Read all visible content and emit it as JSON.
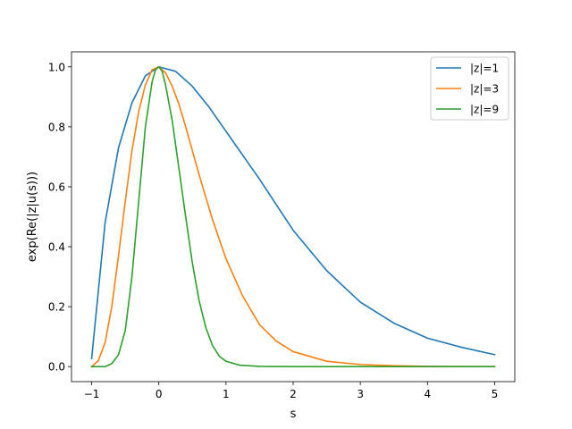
{
  "chart_data": {
    "type": "line",
    "title": "",
    "xlabel": "s",
    "ylabel": "exp(Re(|z|u(s)))",
    "xlim": [
      -1.3,
      5.3
    ],
    "ylim": [
      -0.05,
      1.05
    ],
    "xticks": [
      -1,
      0,
      1,
      2,
      3,
      4,
      5
    ],
    "xtick_labels": [
      "−1",
      "0",
      "1",
      "2",
      "3",
      "4",
      "5"
    ],
    "yticks": [
      0.0,
      0.2,
      0.4,
      0.6,
      0.8,
      1.0
    ],
    "ytick_labels": [
      "0.0",
      "0.2",
      "0.4",
      "0.6",
      "0.8",
      "1.0"
    ],
    "grid": false,
    "legend_position": "top-right",
    "series": [
      {
        "name": "|z|=1",
        "color": "#1f77b4",
        "x": [
          -1,
          -0.8,
          -0.6,
          -0.4,
          -0.2,
          0,
          0.25,
          0.5,
          0.75,
          1,
          1.5,
          2,
          2.5,
          3,
          3.5,
          4,
          4.5,
          5
        ],
        "y": [
          0.027,
          0.48,
          0.73,
          0.88,
          0.97,
          1.0,
          0.985,
          0.935,
          0.865,
          0.785,
          0.625,
          0.455,
          0.32,
          0.215,
          0.145,
          0.095,
          0.065,
          0.04
        ]
      },
      {
        "name": "|z|=3",
        "color": "#ff7f0e",
        "x": [
          -1,
          -0.9,
          -0.8,
          -0.7,
          -0.6,
          -0.5,
          -0.4,
          -0.3,
          -0.2,
          -0.1,
          0,
          0.1,
          0.2,
          0.3,
          0.4,
          0.5,
          0.6,
          0.8,
          1,
          1.25,
          1.5,
          1.75,
          2,
          2.5,
          3,
          3.5,
          4,
          5
        ],
        "y": [
          0.0,
          0.02,
          0.08,
          0.2,
          0.37,
          0.55,
          0.72,
          0.85,
          0.94,
          0.99,
          1.0,
          0.98,
          0.935,
          0.875,
          0.8,
          0.72,
          0.64,
          0.49,
          0.36,
          0.235,
          0.14,
          0.085,
          0.05,
          0.018,
          0.007,
          0.003,
          0.001,
          0.0
        ]
      },
      {
        "name": "|z|=9",
        "color": "#2ca02c",
        "x": [
          -1,
          -0.8,
          -0.7,
          -0.6,
          -0.5,
          -0.4,
          -0.3,
          -0.2,
          -0.1,
          -0.05,
          0,
          0.05,
          0.1,
          0.2,
          0.3,
          0.4,
          0.5,
          0.6,
          0.7,
          0.8,
          0.9,
          1.0,
          1.2,
          1.5,
          2,
          3,
          5
        ],
        "y": [
          0.0,
          0.0,
          0.01,
          0.04,
          0.12,
          0.3,
          0.55,
          0.8,
          0.95,
          0.99,
          1.0,
          0.985,
          0.94,
          0.82,
          0.66,
          0.5,
          0.345,
          0.22,
          0.13,
          0.07,
          0.035,
          0.018,
          0.005,
          0.001,
          0.0,
          0.0,
          0.0
        ]
      }
    ]
  }
}
